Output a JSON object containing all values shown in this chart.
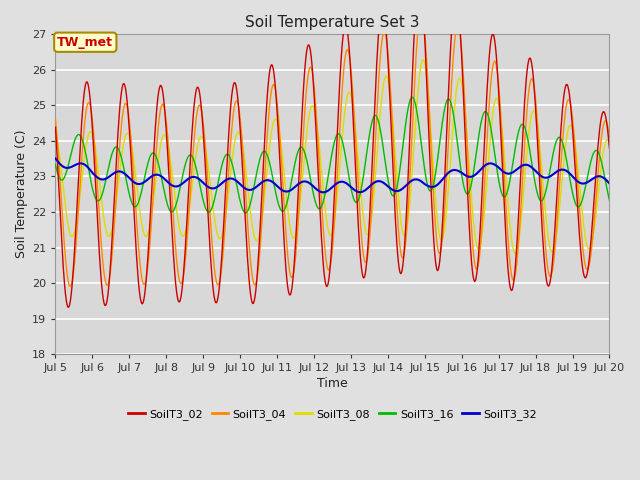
{
  "title": "Soil Temperature Set 3",
  "xlabel": "Time",
  "ylabel": "Soil Temperature (C)",
  "ylim": [
    18.0,
    27.0
  ],
  "yticks": [
    18.0,
    19.0,
    20.0,
    21.0,
    22.0,
    23.0,
    24.0,
    25.0,
    26.0,
    27.0
  ],
  "xtick_labels": [
    "Jul 5",
    "Jul 6",
    "Jul 7",
    "Jul 8",
    "Jul 9",
    "Jul 10",
    "Jul 11",
    "Jul 12",
    "Jul 13",
    "Jul 14",
    "Jul 15",
    "Jul 16",
    "Jul 17",
    "Jul 18",
    "Jul 19",
    "Jul 20"
  ],
  "colors": {
    "SoilT3_02": "#cc0000",
    "SoilT3_04": "#ff8800",
    "SoilT3_08": "#dddd00",
    "SoilT3_16": "#00bb00",
    "SoilT3_32": "#0000cc"
  },
  "annotation_text": "TW_met",
  "annotation_color": "#cc0000",
  "annotation_bg": "#ffffcc",
  "annotation_border": "#aa8800",
  "fig_bg": "#e0e0e0",
  "plot_bg": "#d8d8d8",
  "grid_color": "#f0f0f0",
  "n_points": 720,
  "start_day": 5,
  "end_day": 20,
  "legend_entries": [
    "SoilT3_02",
    "SoilT3_04",
    "SoilT3_08",
    "SoilT3_16",
    "SoilT3_32"
  ]
}
